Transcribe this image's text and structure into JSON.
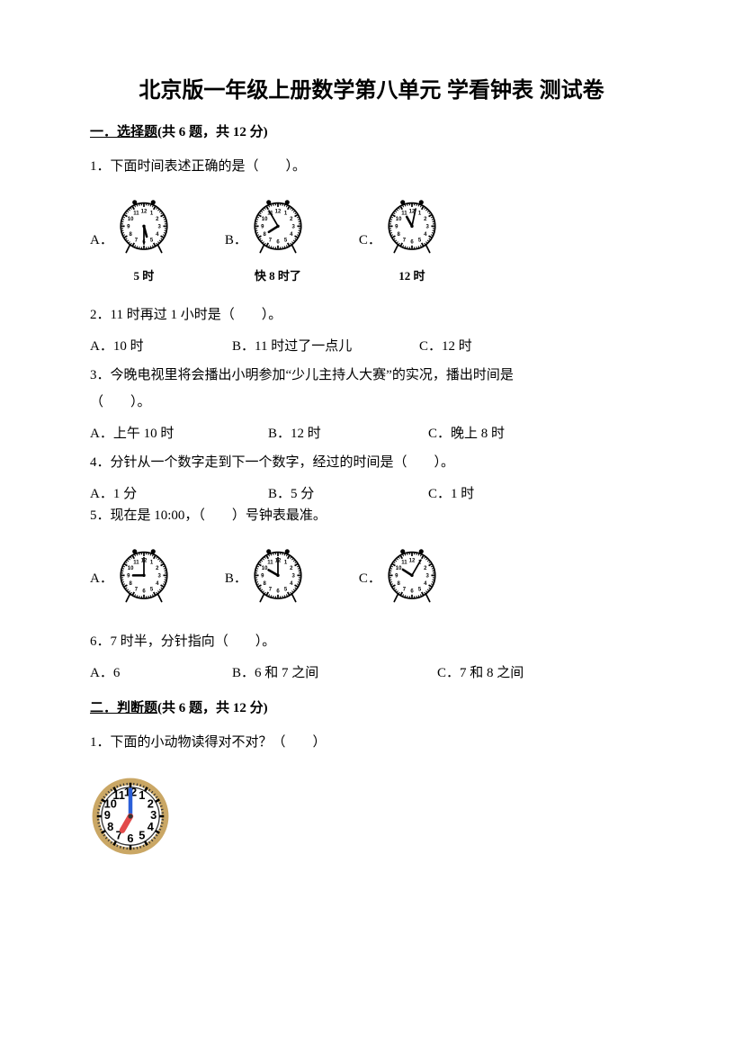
{
  "title": "北京版一年级上册数学第八单元 学看钟表 测试卷",
  "sections": [
    {
      "ord": "一",
      "name": "选择题",
      "count": "6",
      "score": "12"
    },
    {
      "ord": "二",
      "name": "判断题",
      "count": "6",
      "score": "12"
    }
  ],
  "q1": {
    "stem": "1．下面时间表述正确的是（　　）。",
    "opts": [
      {
        "letter": "A．",
        "caption": "5 时",
        "hour": 5,
        "minute": 30
      },
      {
        "letter": "B．",
        "caption": "快 8 时了",
        "hour": 7,
        "minute": 55
      },
      {
        "letter": "C．",
        "caption": "12 时",
        "hour": 11,
        "minute": 2
      }
    ]
  },
  "q2": {
    "stem": "2．11 时再过 1 小时是（　　）。",
    "opts": [
      {
        "letter": "A．",
        "text": "10 时"
      },
      {
        "letter": "B．",
        "text": "11 时过了一点儿"
      },
      {
        "letter": "C．",
        "text": "12 时"
      }
    ]
  },
  "q3": {
    "stem_a": "3．今晚电视里将会播出小明参加“少儿主持人大赛”的实况，播出时间是",
    "stem_b": "（　　）。",
    "opts": [
      {
        "letter": "A．",
        "text": "上午 10 时"
      },
      {
        "letter": "B．",
        "text": "12 时"
      },
      {
        "letter": "C．",
        "text": "晚上 8 时"
      }
    ]
  },
  "q4": {
    "stem": "4．分针从一个数字走到下一个数字，经过的时间是（　　）。",
    "opts": [
      {
        "letter": "A．",
        "text": "1 分"
      },
      {
        "letter": "B．",
        "text": "5 分"
      },
      {
        "letter": "C．",
        "text": "1 时"
      }
    ]
  },
  "q5": {
    "stem": "5．现在是 10:00，（　　）号钟表最准。",
    "opts": [
      {
        "letter": "A．",
        "hour": 9,
        "minute": 0
      },
      {
        "letter": "B．",
        "hour": 10,
        "minute": 0
      },
      {
        "letter": "C．",
        "hour": 10,
        "minute": 5
      }
    ]
  },
  "q6": {
    "stem": "6．7 时半，分针指向（　　）。",
    "opts": [
      {
        "letter": "A．",
        "text": "6"
      },
      {
        "letter": "B．",
        "text": "6 和 7 之间"
      },
      {
        "letter": "C．",
        "text": "7 和 8 之间"
      }
    ]
  },
  "p2q1": {
    "stem": "1．下面的小动物读得对不对？（　　）",
    "clock": {
      "hour": 7,
      "minute": 0
    }
  }
}
